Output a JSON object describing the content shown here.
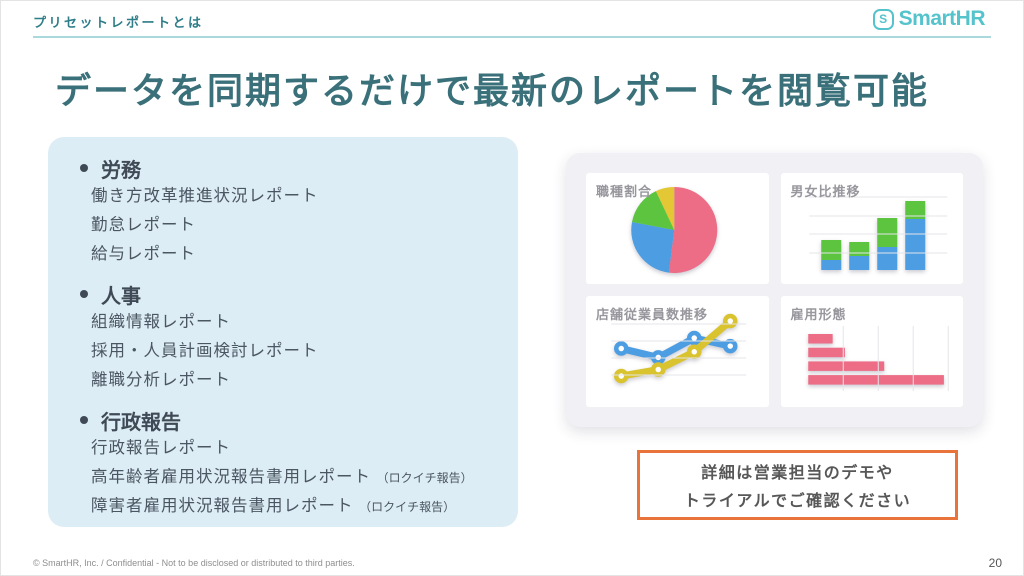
{
  "slide": {
    "kicker": "プリセットレポートとは",
    "title": "データを同期するだけで最新のレポートを閲覧可能",
    "footer": "© SmartHR, Inc. / Confidential - Not to be disclosed or distributed to third parties.",
    "page_number": "20"
  },
  "logo": {
    "brand": "SmartHR",
    "icon_letter": "S"
  },
  "report_list": {
    "sections": [
      {
        "label": "労務",
        "items": [
          {
            "text": "働き方改革推進状況レポート",
            "note": ""
          },
          {
            "text": "勤怠レポート",
            "note": ""
          },
          {
            "text": "給与レポート",
            "note": ""
          }
        ]
      },
      {
        "label": "人事",
        "items": [
          {
            "text": "組織情報レポート",
            "note": ""
          },
          {
            "text": "採用・人員計画検討レポート",
            "note": ""
          },
          {
            "text": "離職分析レポート",
            "note": ""
          }
        ]
      },
      {
        "label": "行政報告",
        "items": [
          {
            "text": "行政報告レポート",
            "note": ""
          },
          {
            "text": "高年齢者雇用状況報告書用レポート",
            "note": "（ロクイチ報告）"
          },
          {
            "text": "障害者雇用状況報告書用レポート",
            "note": "（ロクイチ報告）"
          }
        ]
      }
    ]
  },
  "cta": {
    "line1": "詳細は営業担当のデモや",
    "line2": "トライアルでご確認ください"
  },
  "colors": {
    "accent_teal": "#2e7d89",
    "title_teal": "#3a7079",
    "logo_teal": "#54c3cb",
    "panel_blue": "#ddedf5",
    "cta_border_orange": "#e8743c",
    "chart_pink": "#ec6d85",
    "chart_blue": "#4d9de2",
    "chart_green": "#5cc43e",
    "chart_yellow": "#d9c32f"
  },
  "chart_data": [
    {
      "type": "pie",
      "title": "職種割合",
      "values": [
        52,
        26,
        15,
        7
      ],
      "colors": [
        "#ec6d85",
        "#4d9de2",
        "#5cc43e",
        "#e3c734"
      ],
      "legend": false
    },
    {
      "type": "bar",
      "subtype": "stacked-column",
      "title": "男女比推移",
      "categories": [
        "1",
        "2",
        "3",
        "4"
      ],
      "series": [
        {
          "name": "bottom-blue",
          "color": "#4d9de2",
          "values": [
            1.0,
            1.4,
            2.3,
            5.1
          ]
        },
        {
          "name": "top-green",
          "color": "#5cc43e",
          "values": [
            2.0,
            1.4,
            2.9,
            1.8
          ]
        }
      ],
      "ylim": [
        0,
        9.7
      ],
      "grid": true
    },
    {
      "type": "line",
      "title": "店舗従業員数推移",
      "x": [
        1,
        2,
        3,
        4
      ],
      "series": [
        {
          "name": "blue-line",
          "color": "#4d9de2",
          "values": [
            5.5,
            4.4,
            6.8,
            5.8
          ]
        },
        {
          "name": "yellow-line",
          "color": "#d9c32f",
          "values": [
            2.1,
            2.9,
            5.1,
            8.9
          ]
        }
      ],
      "ylim": [
        0,
        12
      ],
      "grid": true
    },
    {
      "type": "bar",
      "subtype": "horizontal",
      "title": "雇用形態",
      "categories": [
        "1",
        "2",
        "3",
        "4"
      ],
      "values": [
        1.8,
        2.7,
        5.6,
        10.0
      ],
      "color": "#ec6d85",
      "xlim": [
        0,
        11.5
      ],
      "grid": true
    }
  ]
}
